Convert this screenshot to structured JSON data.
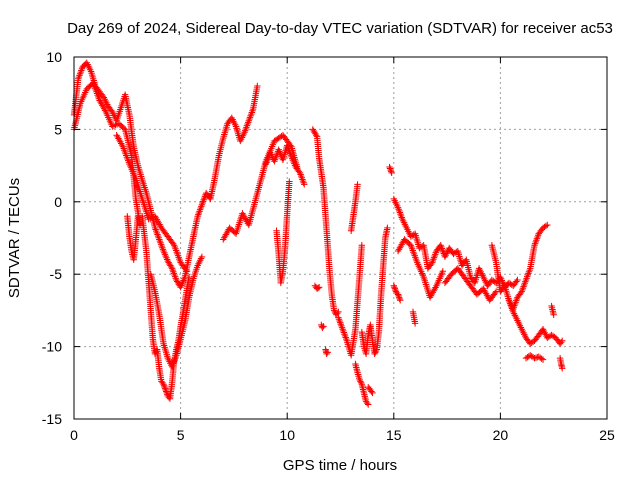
{
  "chart_data": {
    "type": "scatter",
    "title": "Day 269 of 2024, Sidereal Day-to-day VTEC variation (SDTVAR) for receiver ac53",
    "xlabel": "GPS time / hours",
    "ylabel": "SDTVAR / TECUs",
    "xlim": [
      0,
      25
    ],
    "ylim": [
      -15,
      10
    ],
    "x_ticks": [
      0,
      5,
      10,
      15,
      20,
      25
    ],
    "y_ticks": [
      -15,
      -10,
      -5,
      0,
      5,
      10
    ],
    "x_tick_labels": [
      "0",
      "5",
      "10",
      "15",
      "20",
      "25"
    ],
    "y_tick_labels": [
      "-15",
      "-10",
      "-5",
      "0",
      "5",
      "10"
    ],
    "grid": true,
    "marker": "+",
    "series_color": "#ff0000",
    "series": [
      {
        "name": "SDTVAR",
        "segments": [
          {
            "x": [
              0.0,
              0.2,
              0.4,
              0.6,
              0.8,
              1.0,
              1.2,
              1.4,
              1.6,
              1.8,
              2.0,
              2.2,
              2.4,
              2.6,
              2.8,
              3.0,
              3.2,
              3.4,
              3.6,
              3.8,
              4.0,
              4.2,
              4.4,
              4.6,
              4.8,
              5.0,
              5.2,
              5.4,
              5.6,
              5.8,
              6.0,
              6.2,
              6.4,
              6.6,
              6.8,
              7.0,
              7.2,
              7.4,
              7.6,
              7.8,
              8.0,
              8.2,
              8.4,
              8.6
            ],
            "y": [
              6.0,
              8.5,
              9.3,
              9.6,
              9.0,
              8.0,
              7.6,
              7.2,
              6.6,
              6.2,
              5.6,
              6.5,
              7.4,
              6.0,
              3.8,
              2.5,
              1.5,
              0.6,
              -0.6,
              -1.8,
              -2.6,
              -3.4,
              -4.1,
              -4.6,
              -5.4,
              -5.9,
              -5.2,
              -3.8,
              -2.4,
              -1.0,
              -0.2,
              0.6,
              0.2,
              1.6,
              3.2,
              4.4,
              5.4,
              5.8,
              5.2,
              4.2,
              4.8,
              5.6,
              6.4,
              8.0
            ]
          },
          {
            "x": [
              0.0,
              0.3,
              0.6,
              0.9,
              1.2,
              1.5,
              1.8,
              2.1,
              2.4,
              2.7,
              2.9,
              3.1
            ],
            "y": [
              5.0,
              6.8,
              7.8,
              8.2,
              7.0,
              6.2,
              5.2,
              5.4,
              5.0,
              3.2,
              0.2,
              -1.6
            ]
          },
          {
            "x": [
              2.5,
              2.6,
              2.7,
              2.8,
              2.9,
              3.0
            ],
            "y": [
              -1.0,
              -2.4,
              -3.4,
              -4.0,
              -2.6,
              -1.0
            ]
          },
          {
            "x": [
              3.2,
              3.4,
              3.5,
              3.6,
              3.7,
              3.8,
              3.9,
              4.0,
              4.1,
              4.2,
              4.3,
              4.4,
              4.5,
              4.6,
              4.7,
              4.8,
              4.9,
              5.0,
              5.1,
              5.2,
              5.3,
              5.4
            ],
            "y": [
              -1.0,
              -3.5,
              -5.5,
              -7.5,
              -9.5,
              -10.5,
              -10.2,
              -11.5,
              -12.4,
              -12.6,
              -13.0,
              -13.4,
              -13.6,
              -12.5,
              -11.0,
              -10.2,
              -9.6,
              -8.6,
              -7.8,
              -6.9,
              -6.0,
              -5.2
            ]
          },
          {
            "x": [
              3.6,
              3.8,
              4.0,
              4.2,
              4.4,
              4.6,
              4.8,
              5.0,
              5.2,
              5.4,
              5.6,
              5.8,
              6.0
            ],
            "y": [
              -5.0,
              -6.2,
              -7.8,
              -9.8,
              -10.8,
              -11.4,
              -10.6,
              -9.5,
              -8.3,
              -6.6,
              -5.3,
              -4.4,
              -3.8
            ]
          },
          {
            "x": [
              2.0,
              2.3,
              2.6,
              2.9,
              3.2,
              3.5,
              3.8,
              4.1,
              4.4,
              4.7,
              5.0,
              5.3
            ],
            "y": [
              4.6,
              3.8,
              2.6,
              1.6,
              0.2,
              -1.2,
              -1.0,
              -1.8,
              -2.4,
              -3.0,
              -4.2,
              -4.8
            ]
          },
          {
            "x": [
              7.0,
              7.3,
              7.6,
              7.9,
              8.2,
              8.6,
              9.0,
              9.4,
              9.8,
              10.2,
              10.5
            ],
            "y": [
              -2.6,
              -1.8,
              -2.2,
              -0.8,
              -1.6,
              0.6,
              2.8,
              4.2,
              4.6,
              3.8,
              2.2
            ]
          },
          {
            "x": [
              9.0,
              9.2,
              9.4,
              9.6,
              9.8,
              10.0,
              10.2,
              10.4,
              10.6,
              10.8
            ],
            "y": [
              2.6,
              3.4,
              2.8,
              3.6,
              2.9,
              3.9,
              3.1,
              2.4,
              2.0,
              1.2
            ]
          },
          {
            "x": [
              9.5,
              9.6,
              9.7,
              9.8,
              9.9,
              10.0,
              10.1
            ],
            "y": [
              -2.0,
              -3.6,
              -5.6,
              -4.8,
              -3.2,
              -0.8,
              1.4
            ]
          },
          {
            "x": [
              11.2,
              11.4,
              11.5,
              11.6,
              11.7,
              11.8,
              11.9,
              12.0,
              12.1,
              12.2,
              12.3,
              12.4
            ],
            "y": [
              5.0,
              4.5,
              3.0,
              2.0,
              1.0,
              -1.0,
              -3.0,
              -5.0,
              -6.5,
              -7.5,
              -7.8,
              -7.6
            ]
          },
          {
            "x": [
              11.3,
              11.4,
              11.5
            ],
            "y": [
              -5.8,
              -6.0,
              -5.9
            ]
          },
          {
            "x": [
              11.6,
              11.65,
              11.7
            ],
            "y": [
              -8.5,
              -8.7,
              -8.6
            ]
          },
          {
            "x": [
              11.8,
              11.85,
              11.9
            ],
            "y": [
              -10.2,
              -10.5,
              -10.4
            ]
          },
          {
            "x": [
              12.4,
              12.6,
              12.8,
              13.0,
              13.2,
              13.4,
              13.5
            ],
            "y": [
              -8.0,
              -8.8,
              -9.6,
              -10.6,
              -8.8,
              -5.0,
              -3.0
            ]
          },
          {
            "x": [
              13.0,
              13.1,
              13.2,
              13.3
            ],
            "y": [
              -2.0,
              -1.0,
              0.0,
              1.2
            ]
          },
          {
            "x": [
              13.2,
              13.3,
              13.4,
              13.5,
              13.6,
              13.7,
              13.8
            ],
            "y": [
              -11.2,
              -11.8,
              -12.3,
              -12.6,
              -13.2,
              -13.8,
              -14.0
            ]
          },
          {
            "x": [
              13.5,
              13.6,
              13.7,
              13.8,
              13.9,
              14.0,
              14.1,
              14.2,
              14.3,
              14.4,
              14.5,
              14.6,
              14.7
            ],
            "y": [
              -9.0,
              -10.0,
              -10.5,
              -9.2,
              -8.5,
              -9.6,
              -10.5,
              -10.2,
              -9.0,
              -6.5,
              -4.5,
              -2.5,
              -1.8
            ]
          },
          {
            "x": [
              13.8,
              13.9,
              14.0
            ],
            "y": [
              -12.8,
              -13.0,
              -13.2
            ]
          },
          {
            "x": [
              14.8,
              14.9
            ],
            "y": [
              2.4,
              2.0
            ]
          },
          {
            "x": [
              15.0,
              15.2,
              15.4,
              15.6,
              15.8,
              16.0,
              16.2,
              16.4,
              16.6,
              16.8,
              17.0,
              17.2,
              17.4,
              17.6,
              17.8,
              18.0,
              18.2,
              18.4,
              18.6,
              18.8,
              19.0,
              19.2,
              19.4,
              19.6,
              19.8,
              20.0,
              20.2,
              20.4,
              20.6,
              20.8
            ],
            "y": [
              0.2,
              -0.4,
              -1.2,
              -1.8,
              -2.4,
              -2.2,
              -3.2,
              -3.0,
              -4.6,
              -4.2,
              -3.4,
              -3.0,
              -3.8,
              -3.2,
              -3.6,
              -3.4,
              -4.4,
              -4.0,
              -5.2,
              -5.6,
              -4.6,
              -5.2,
              -5.8,
              -5.4,
              -5.6,
              -5.2,
              -5.9,
              -5.6,
              -5.8,
              -5.4
            ]
          },
          {
            "x": [
              15.2,
              15.5,
              15.8,
              16.1,
              16.4,
              16.7,
              17.0,
              17.3
            ],
            "y": [
              -3.4,
              -2.6,
              -3.0,
              -4.2,
              -5.2,
              -6.6,
              -5.8,
              -4.8
            ]
          },
          {
            "x": [
              15.0,
              15.1,
              15.2,
              15.3
            ],
            "y": [
              -5.8,
              -6.2,
              -6.4,
              -6.8
            ]
          },
          {
            "x": [
              15.9,
              16.0
            ],
            "y": [
              -7.6,
              -8.4
            ]
          },
          {
            "x": [
              17.4,
              17.7,
              18.0,
              18.3,
              18.6,
              18.9,
              19.2,
              19.5,
              19.8
            ],
            "y": [
              -5.6,
              -5.0,
              -4.6,
              -5.2,
              -5.8,
              -6.4,
              -6.0,
              -6.8,
              -6.2
            ]
          },
          {
            "x": [
              19.6,
              19.8,
              20.0,
              20.2,
              20.4,
              20.6,
              20.8,
              21.0,
              21.2,
              21.4,
              21.6,
              21.8,
              22.0,
              22.2
            ],
            "y": [
              -3.0,
              -4.2,
              -6.2,
              -5.8,
              -6.8,
              -7.4,
              -6.6,
              -6.2,
              -5.4,
              -4.6,
              -3.0,
              -2.2,
              -1.8,
              -1.6
            ]
          },
          {
            "x": [
              20.4,
              20.6,
              20.8,
              21.0,
              21.2,
              21.4,
              21.6,
              21.8,
              22.0,
              22.2,
              22.4,
              22.6,
              22.8,
              22.9
            ],
            "y": [
              -6.8,
              -7.6,
              -8.2,
              -8.8,
              -9.4,
              -9.8,
              -9.6,
              -9.2,
              -8.8,
              -9.4,
              -9.2,
              -9.4,
              -9.8,
              -9.6
            ]
          },
          {
            "x": [
              21.2,
              21.4,
              21.6,
              21.8,
              22.0
            ],
            "y": [
              -10.8,
              -10.6,
              -10.8,
              -10.7,
              -10.9
            ]
          },
          {
            "x": [
              22.4,
              22.5
            ],
            "y": [
              -7.2,
              -7.8
            ]
          },
          {
            "x": [
              22.8,
              22.85,
              22.9
            ],
            "y": [
              -10.8,
              -11.2,
              -11.5
            ]
          }
        ]
      }
    ]
  }
}
